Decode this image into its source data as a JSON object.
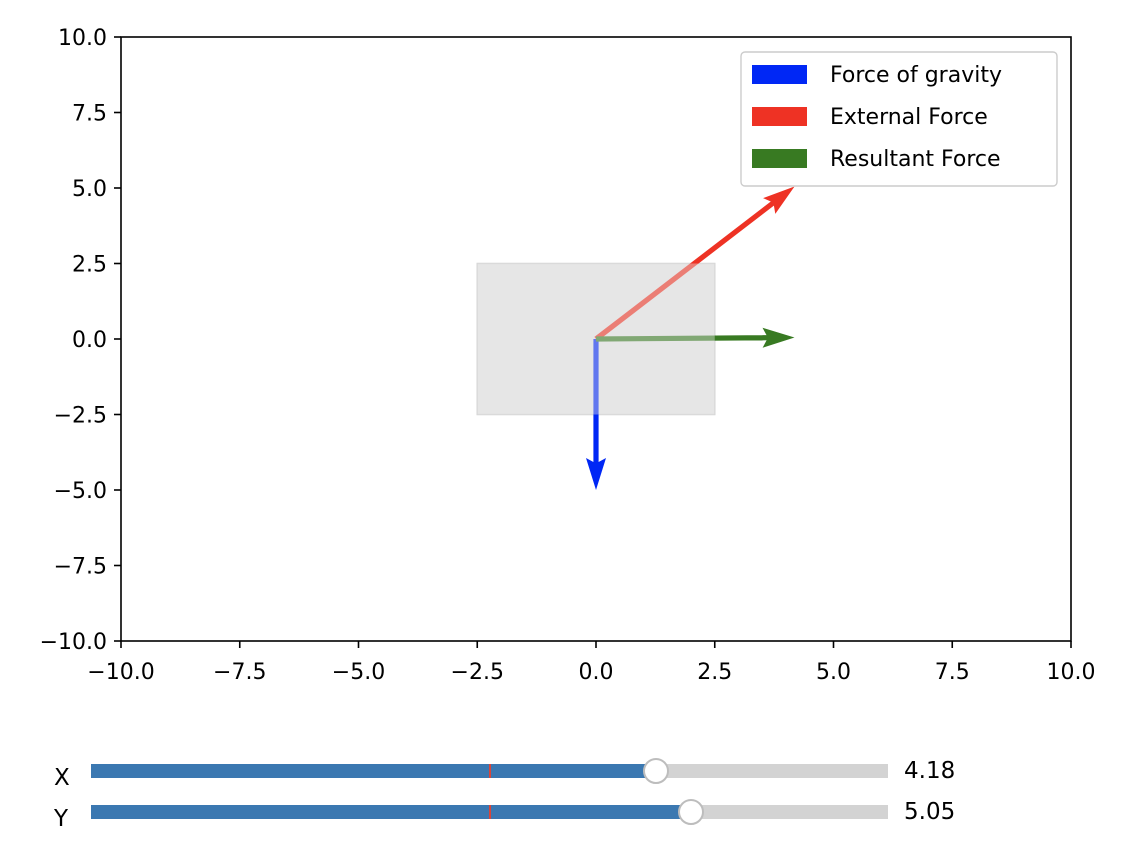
{
  "chart_data": {
    "type": "vector",
    "xlim": [
      -10.0,
      10.0
    ],
    "ylim": [
      -10.0,
      10.0
    ],
    "xticks": [
      "−10.0",
      "−7.5",
      "−5.0",
      "−2.5",
      "0.0",
      "2.5",
      "5.0",
      "7.5",
      "10.0"
    ],
    "yticks": [
      "−10.0",
      "−7.5",
      "−5.0",
      "−2.5",
      "0.0",
      "2.5",
      "5.0",
      "7.5",
      "10.0"
    ],
    "xtick_values": [
      -10,
      -7.5,
      -5,
      -2.5,
      0,
      2.5,
      5,
      7.5,
      10
    ],
    "ytick_values": [
      -10,
      -7.5,
      -5,
      -2.5,
      0,
      2.5,
      5,
      7.5,
      10
    ],
    "object": {
      "x0": -2.5,
      "x1": 2.5,
      "y0": -2.5,
      "y1": 2.5,
      "color": "#e6e6e6"
    },
    "vectors": [
      {
        "name": "Force of gravity",
        "x0": 0,
        "y0": 0,
        "dx": 0,
        "dy": -5,
        "color": "#0027f5"
      },
      {
        "name": "External Force",
        "x0": 0,
        "y0": 0,
        "dx": 4.18,
        "dy": 5.05,
        "color": "#ee3224"
      },
      {
        "name": "Resultant Force",
        "x0": 0,
        "y0": 0,
        "dx": 4.18,
        "dy": 0.05,
        "color": "#387a22"
      }
    ],
    "legend_position": "top-right"
  },
  "sliders": [
    {
      "label": "X",
      "value": 4.18,
      "value_text": "4.18",
      "min": -10,
      "max": 10,
      "init": 0
    },
    {
      "label": "Y",
      "value": 5.05,
      "value_text": "5.05",
      "min": -10,
      "max": 10,
      "init": 0
    }
  ],
  "colors": {
    "slider_fill": "#3b78b1",
    "slider_track": "#d3d3d3",
    "slider_init_line": "#d8453a"
  }
}
